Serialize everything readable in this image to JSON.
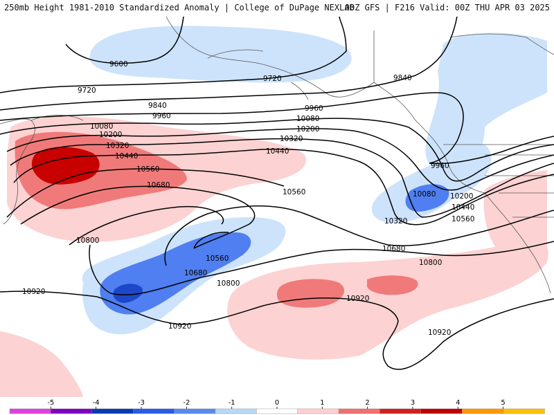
{
  "header": {
    "left_title": "250mb Height 1981-2010 Standardized Anomaly | College of DuPage NEXLAB",
    "right_title": "00Z GFS | F216 Valid: 00Z THU APR 03 2025"
  },
  "contour_labels": {
    "l9600": "9600",
    "l9720a": "9720",
    "l9720b": "9720",
    "l9840a": "9840",
    "l9840b": "9840",
    "l9960a": "9960",
    "l9960b": "9960",
    "l9960c": "9960",
    "l10080a": "10080",
    "l10080b": "10080",
    "l10080c": "10080",
    "l10200a": "10200",
    "l10200b": "10200",
    "l10200c": "10200",
    "l10320a": "10320",
    "l10320b": "10320",
    "l10320c": "10320",
    "l10440a": "10440",
    "l10440b": "10440",
    "l10440c": "10440",
    "l10560a": "10560",
    "l10560b": "10560",
    "l10560c": "10560",
    "l10560d": "10560",
    "l10680a": "10680",
    "l10680b": "10680",
    "l10680c": "10680",
    "l10800a": "10800",
    "l10800b": "10800",
    "l10800c": "10800",
    "l10920a": "10920",
    "l10920b": "10920",
    "l10920c": "10920",
    "l10920d": "10920"
  },
  "legend": {
    "ticks": [
      "-5",
      "-4",
      "-3",
      "-2",
      "-1",
      "0",
      "1",
      "2",
      "3",
      "4",
      "5"
    ],
    "colors": [
      "#e040e0",
      "#8000c0",
      "#0a3ab0",
      "#2a5ae8",
      "#5a8af0",
      "#b8d8f8",
      "#ffffff",
      "#ffd0d0",
      "#f07070",
      "#d02020",
      "#c00000",
      "#ff9900",
      "#ffc000"
    ]
  },
  "colors": {
    "neg1": "#cde3fb",
    "neg2": "#4f7ff0",
    "neg3": "#1e46c8",
    "pos1": "#fcd2d2",
    "pos2": "#f07a7a",
    "pos3": "#c80000",
    "contour": "#000000",
    "coast": "#555555"
  }
}
